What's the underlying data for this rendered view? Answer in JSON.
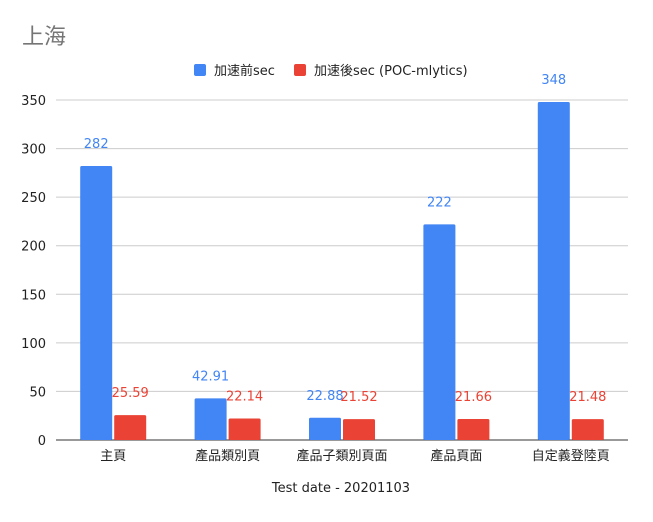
{
  "chart_data": {
    "type": "bar",
    "title": "上海",
    "xlabel": "Test date - 20201103",
    "ylabel": "",
    "ylim": [
      0,
      350
    ],
    "yticks": [
      0,
      50,
      100,
      150,
      200,
      250,
      300,
      350
    ],
    "grid": true,
    "legend_position": "top",
    "categories": [
      "主頁",
      "產品類別頁",
      "產品子類別頁面",
      "產品頁面",
      "自定義登陸頁"
    ],
    "series": [
      {
        "name": "加速前sec",
        "color": "#4285f4",
        "values": [
          282,
          42.91,
          22.88,
          222,
          348
        ],
        "labels": [
          "282",
          "42.91",
          "22.88",
          "222",
          "348"
        ]
      },
      {
        "name": "加速後sec (POC-mlytics)",
        "color": "#ea4335",
        "values": [
          25.59,
          22.14,
          21.52,
          21.66,
          21.48
        ],
        "labels": [
          "25.59",
          "22.14",
          "21.52",
          "21.66",
          "21.48"
        ]
      }
    ]
  }
}
